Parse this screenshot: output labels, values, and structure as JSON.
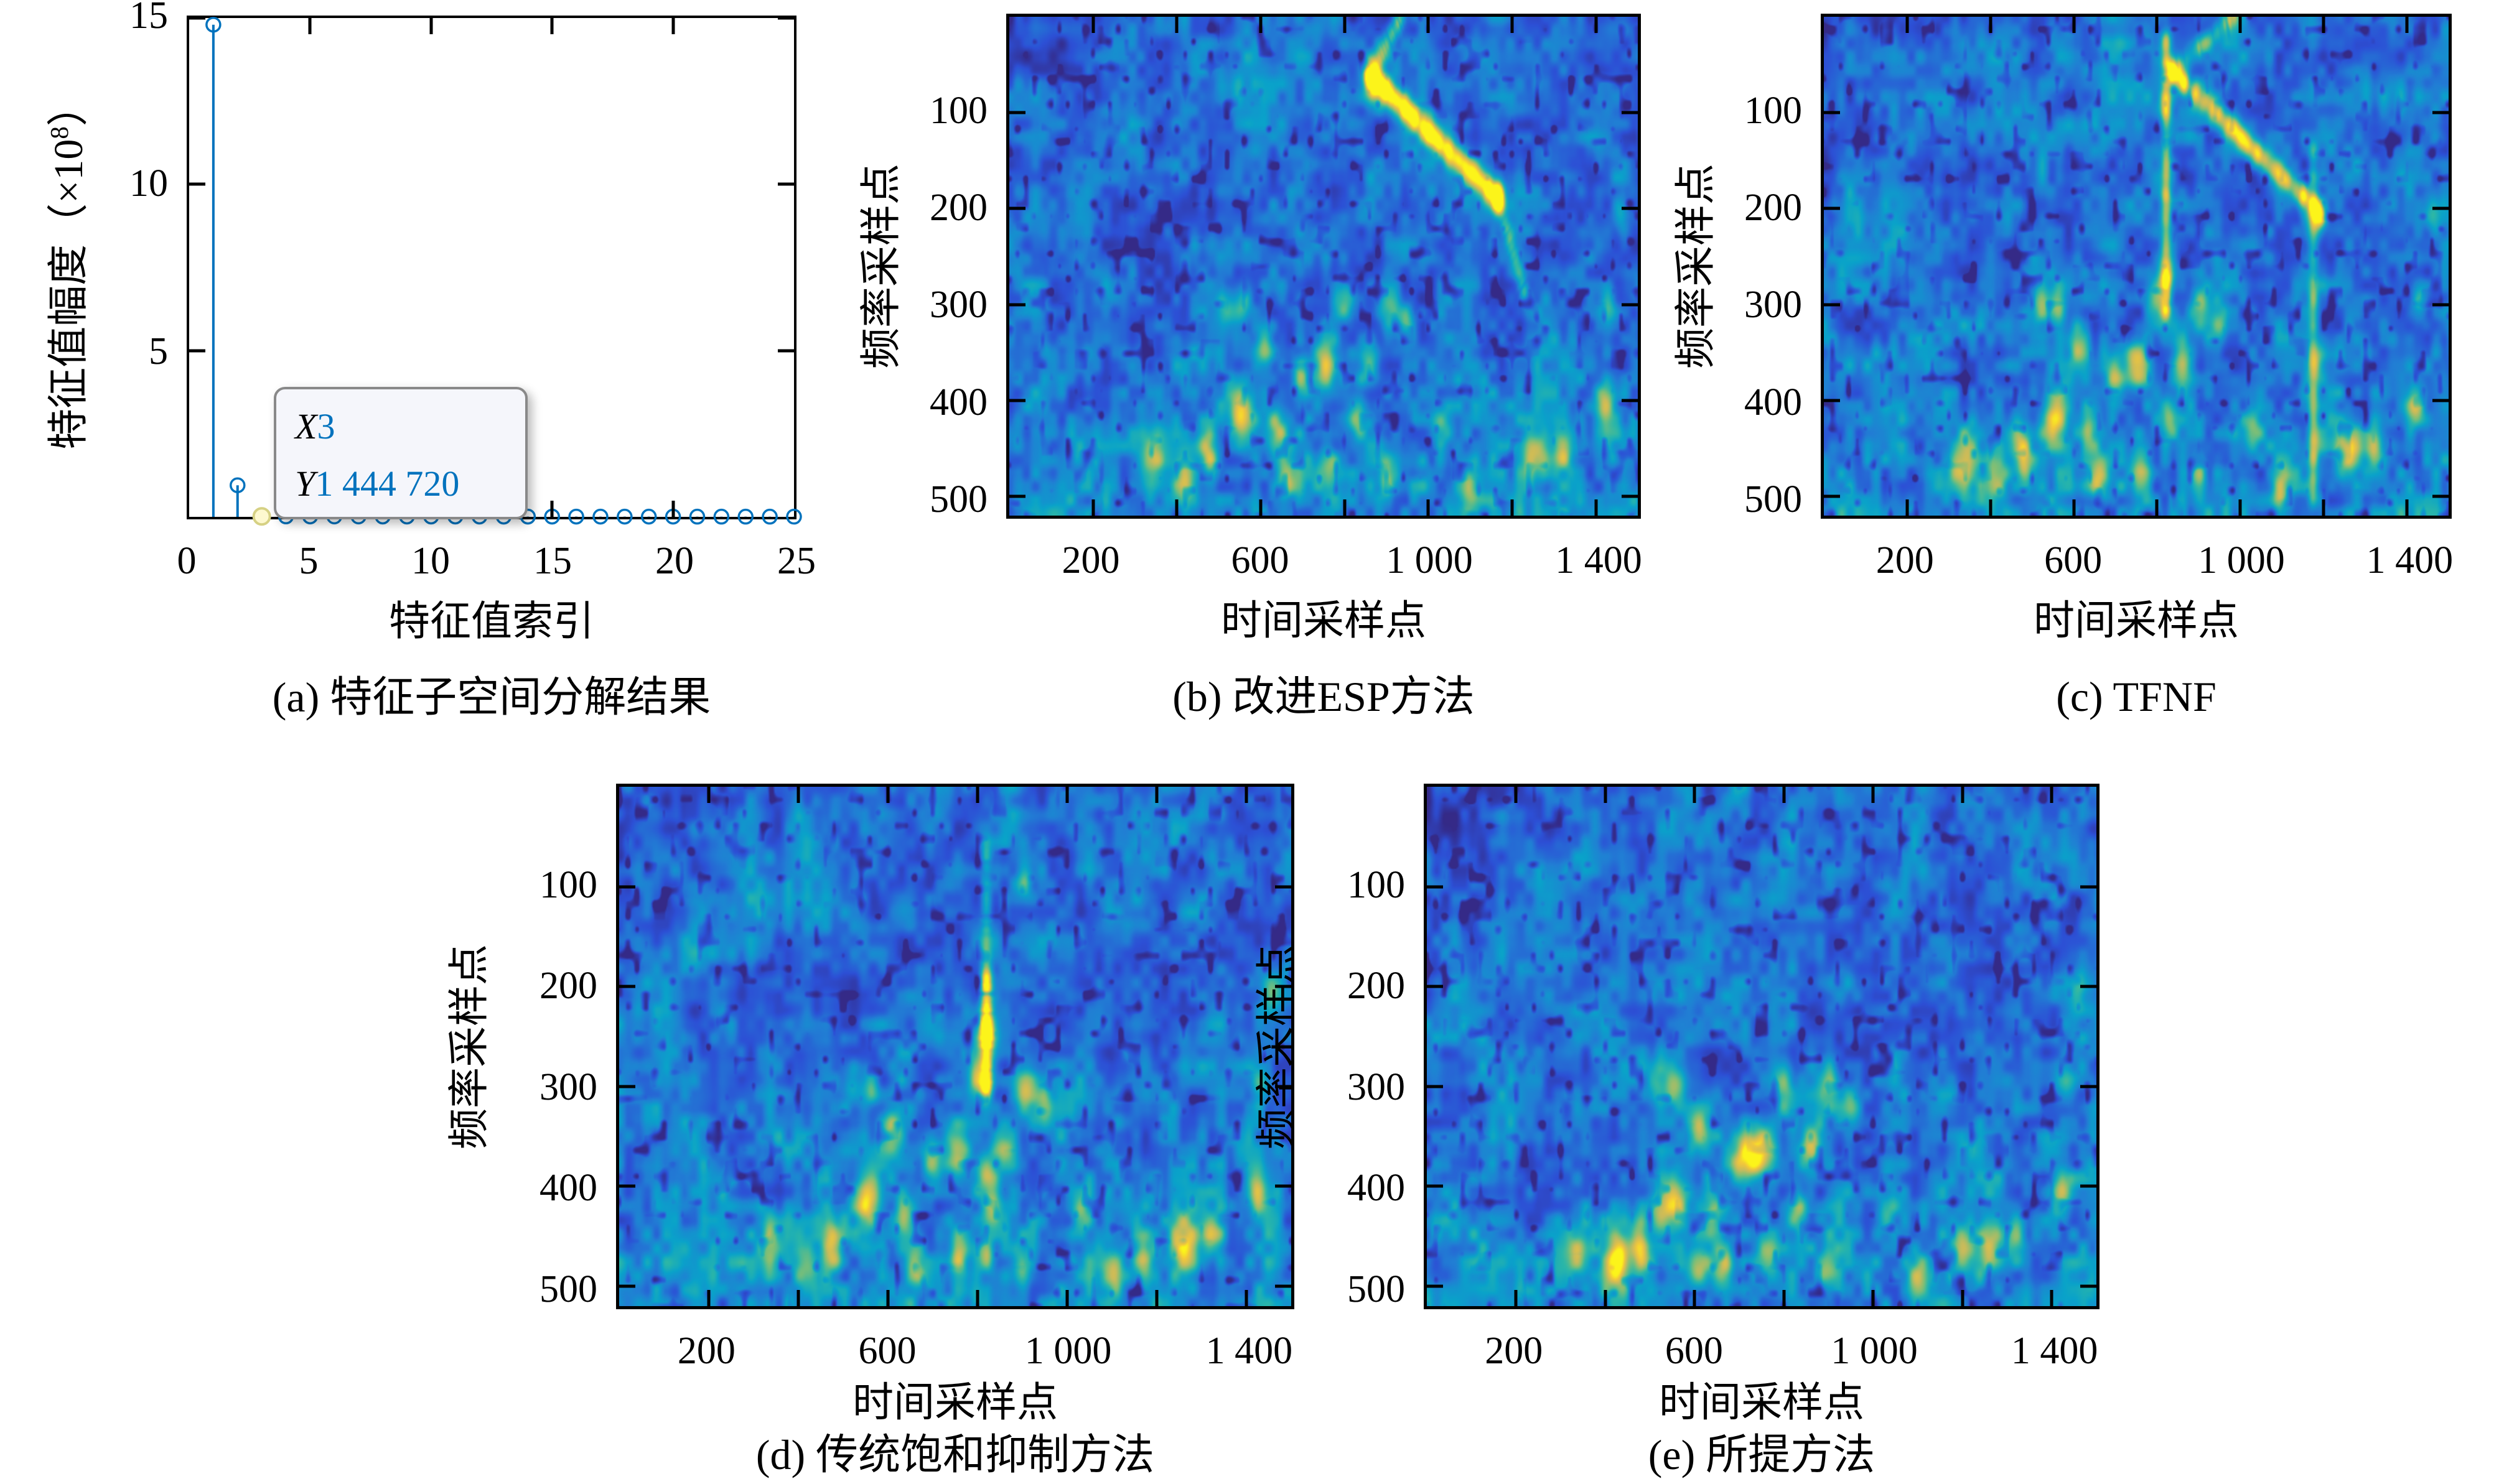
{
  "figure": {
    "background": "#ffffff",
    "description": "五子图科研图：特征子空间分解与四种时频谱抑制结果对比"
  },
  "panels": {
    "a": {
      "caption": "(a) 特征子空间分解结果",
      "xlabel": "特征值索引",
      "ylabel_pre": "特征值幅度（×10",
      "ylabel_sup": "8",
      "ylabel_post": "）",
      "datatip": {
        "x_label": "X",
        "x_value": "3",
        "y_label": "Y",
        "y_value": "1 444 720"
      }
    },
    "b": {
      "caption": "(b) 改进ESP方法",
      "xlabel": "时间采样点",
      "ylabel": "频率采样点"
    },
    "c": {
      "caption": "(c) TFNF",
      "xlabel": "时间采样点",
      "ylabel": "频率采样点"
    },
    "d": {
      "caption": "(d) 传统饱和抑制方法",
      "xlabel": "时间采样点",
      "ylabel": "频率采样点"
    },
    "e": {
      "caption": "(e) 所提方法",
      "xlabel": "时间采样点",
      "ylabel": "频率采样点"
    }
  },
  "style": {
    "accent_blue": "#0072bd",
    "axis_color": "#000000",
    "datatip_bg": "#f5f6fb",
    "datatip_border": "#898989",
    "highlight_fill": "#fdf8cf",
    "highlight_stroke": "#d6d184",
    "colormap": [
      [
        0,
        "#352a87"
      ],
      [
        0.125,
        "#2d50d6"
      ],
      [
        0.25,
        "#2180d4"
      ],
      [
        0.375,
        "#0aa3ca"
      ],
      [
        0.5,
        "#2cb7a8"
      ],
      [
        0.625,
        "#7fbf77"
      ],
      [
        0.75,
        "#c9bb5c"
      ],
      [
        0.875,
        "#f2c73c"
      ],
      [
        1,
        "#fcf41a"
      ]
    ]
  },
  "heatmap_common": {
    "target_blobs": [
      [
        340,
        465,
        22,
        0.45
      ],
      [
        420,
        480,
        18,
        0.4
      ],
      [
        470,
        445,
        16,
        0.35
      ],
      [
        480,
        465,
        14,
        0.4
      ],
      [
        520,
        300,
        16,
        0.3
      ],
      [
        555,
        415,
        20,
        0.65
      ],
      [
        560,
        300,
        14,
        0.36
      ],
      [
        610,
        345,
        16,
        0.42
      ],
      [
        640,
        430,
        16,
        0.42
      ],
      [
        660,
        480,
        16,
        0.45
      ],
      [
        700,
        375,
        16,
        0.46
      ],
      [
        755,
        362,
        18,
        0.58
      ],
      [
        760,
        470,
        16,
        0.42
      ],
      [
        800,
        295,
        16,
        0.44
      ],
      [
        830,
        420,
        14,
        0.4
      ],
      [
        860,
        360,
        16,
        0.46
      ],
      [
        900,
        480,
        14,
        0.36
      ],
      [
        905,
        300,
        16,
        0.42
      ],
      [
        950,
        320,
        14,
        0.35
      ],
      [
        1030,
        430,
        14,
        0.32
      ],
      [
        1100,
        490,
        16,
        0.42
      ],
      [
        1260,
        455,
        20,
        0.58
      ],
      [
        1320,
        450,
        16,
        0.46
      ],
      [
        1420,
        405,
        16,
        0.52
      ],
      [
        1430,
        300,
        14,
        0.3
      ],
      [
        1460,
        205,
        14,
        0.28
      ]
    ],
    "arc_blobs": [
      [
        60,
        215,
        30,
        0.1
      ],
      [
        170,
        160,
        30,
        0.11
      ],
      [
        290,
        110,
        30,
        0.12
      ],
      [
        420,
        70,
        30,
        0.12
      ],
      [
        560,
        42,
        28,
        0.11
      ],
      [
        700,
        25,
        26,
        0.1
      ]
    ]
  },
  "chart_data": [
    {
      "id": "a",
      "type": "stem",
      "title": "(a) 特征子空间分解结果",
      "xlabel": "特征值索引",
      "ylabel": "特征值幅度（×10^8）",
      "xlim": [
        0,
        25
      ],
      "ylim": [
        0,
        15
      ],
      "x": [
        1,
        2,
        3,
        4,
        5,
        6,
        7,
        8,
        9,
        10,
        11,
        12,
        13,
        14,
        15,
        16,
        17,
        18,
        19,
        20,
        21,
        22,
        23,
        24,
        25
      ],
      "y_x1e8": [
        14.8,
        0.95,
        0.0144,
        0.013,
        0.012,
        0.011,
        0.011,
        0.01,
        0.01,
        0.009,
        0.009,
        0.009,
        0.008,
        0.008,
        0.008,
        0.008,
        0.007,
        0.007,
        0.007,
        0.007,
        0.006,
        0.006,
        0.006,
        0.006,
        0.006
      ],
      "datatip": {
        "x": 3,
        "y": 1444720
      },
      "highlight_x": 3,
      "x_tick_marks": [
        5,
        10,
        15,
        20
      ],
      "x_tick_labels": [
        {
          "v": 0,
          "t": "0"
        },
        {
          "v": 5,
          "t": "5"
        },
        {
          "v": 10,
          "t": "10"
        },
        {
          "v": 15,
          "t": "15"
        },
        {
          "v": 20,
          "t": "20"
        },
        {
          "v": 25,
          "t": "25"
        }
      ],
      "y_tick_marks": [
        5,
        10,
        15
      ],
      "y_tick_labels": [
        {
          "v": 5,
          "t": "5"
        },
        {
          "v": 10,
          "t": "10"
        },
        {
          "v": 15,
          "t": "15"
        }
      ]
    },
    {
      "id": "b",
      "type": "heatmap",
      "title": "(b) 改进ESP方法",
      "xlabel": "时间采样点",
      "ylabel": "频率采样点",
      "xlim": [
        0,
        1500
      ],
      "ylim": [
        0,
        520
      ],
      "y_reversed": true,
      "seed": 101,
      "x_tick_marks": [
        200,
        400,
        600,
        800,
        1000,
        1200,
        1400
      ],
      "x_tick_labels": [
        {
          "v": 200,
          "t": "200"
        },
        {
          "v": 600,
          "t": "600"
        },
        {
          "v": 1000,
          "t": "1 000"
        },
        {
          "v": 1400,
          "t": "1 400"
        }
      ],
      "y_tick_marks": [
        100,
        200,
        300,
        400,
        500
      ],
      "y_tick_labels": [
        {
          "v": 100,
          "t": "100"
        },
        {
          "v": 200,
          "t": "200"
        },
        {
          "v": 300,
          "t": "300"
        },
        {
          "v": 400,
          "t": "400"
        },
        {
          "v": 500,
          "t": "500"
        }
      ],
      "use_targets": true,
      "use_arc": true,
      "features": {
        "segments": [
          [
            935,
            0,
            862,
            62,
            8,
            0.36
          ],
          [
            862,
            62,
            1165,
            188,
            10,
            0.85
          ],
          [
            1165,
            188,
            1228,
            285,
            8,
            0.28
          ]
        ],
        "blobs": [
          [
            870,
            66,
            14,
            0.5
          ],
          [
            1160,
            186,
            13,
            0.4
          ]
        ]
      }
    },
    {
      "id": "c",
      "type": "heatmap",
      "title": "(c) TFNF",
      "xlabel": "时间采样点",
      "ylabel": "频率采样点",
      "xlim": [
        0,
        1500
      ],
      "ylim": [
        0,
        520
      ],
      "y_reversed": true,
      "seed": 202,
      "x_tick_marks": [
        200,
        400,
        600,
        800,
        1000,
        1200,
        1400
      ],
      "x_tick_labels": [
        {
          "v": 200,
          "t": "200"
        },
        {
          "v": 600,
          "t": "600"
        },
        {
          "v": 1000,
          "t": "1 000"
        },
        {
          "v": 1400,
          "t": "1 400"
        }
      ],
      "y_tick_marks": [
        100,
        200,
        300,
        400,
        500
      ],
      "y_tick_labels": [
        {
          "v": 100,
          "t": "100"
        },
        {
          "v": 200,
          "t": "200"
        },
        {
          "v": 300,
          "t": "300"
        },
        {
          "v": 400,
          "t": "400"
        },
        {
          "v": 500,
          "t": "500"
        }
      ],
      "use_targets": true,
      "use_arc": true,
      "features": {
        "segments": [
          [
            985,
            0,
            838,
            58,
            8,
            0.33
          ],
          [
            838,
            58,
            1192,
            205,
            9,
            0.72
          ],
          [
            822,
            25,
            822,
            305,
            8,
            0.45
          ],
          [
            1175,
            140,
            1175,
            500,
            8,
            0.26
          ]
        ],
        "blobs": [
          [
            822,
            270,
            14,
            0.5
          ],
          [
            822,
            95,
            12,
            0.3
          ],
          [
            1178,
            215,
            12,
            0.42
          ],
          [
            1178,
            360,
            13,
            0.5
          ],
          [
            1178,
            440,
            12,
            0.32
          ]
        ]
      }
    },
    {
      "id": "d",
      "type": "heatmap",
      "title": "(d) 传统饱和抑制方法",
      "xlabel": "时间采样点",
      "ylabel": "频率采样点",
      "xlim": [
        0,
        1500
      ],
      "ylim": [
        0,
        520
      ],
      "y_reversed": true,
      "seed": 303,
      "x_tick_marks": [
        200,
        400,
        600,
        800,
        1000,
        1200,
        1400
      ],
      "x_tick_labels": [
        {
          "v": 200,
          "t": "200"
        },
        {
          "v": 600,
          "t": "600"
        },
        {
          "v": 1000,
          "t": "1 000"
        },
        {
          "v": 1400,
          "t": "1 400"
        }
      ],
      "y_tick_marks": [
        100,
        200,
        300,
        400,
        500
      ],
      "y_tick_labels": [
        {
          "v": 100,
          "t": "100"
        },
        {
          "v": 200,
          "t": "200"
        },
        {
          "v": 300,
          "t": "300"
        },
        {
          "v": 400,
          "t": "400"
        },
        {
          "v": 500,
          "t": "500"
        }
      ],
      "use_targets": true,
      "use_arc": true,
      "features": {
        "segments": [
          [
            820,
            195,
            820,
            300,
            9,
            0.75
          ],
          [
            820,
            60,
            820,
            195,
            8,
            0.22
          ]
        ],
        "blobs": [
          [
            820,
            250,
            12,
            0.55
          ],
          [
            820,
            385,
            13,
            0.5
          ],
          [
            820,
            470,
            13,
            0.5
          ],
          [
            1170,
            470,
            14,
            0.5
          ],
          [
            905,
            95,
            12,
            0.3
          ]
        ]
      }
    },
    {
      "id": "e",
      "type": "heatmap",
      "title": "(e) 所提方法",
      "xlabel": "时间采样点",
      "ylabel": "频率采样点",
      "xlim": [
        0,
        1500
      ],
      "ylim": [
        0,
        520
      ],
      "y_reversed": true,
      "seed": 404,
      "x_tick_marks": [
        200,
        400,
        600,
        800,
        1000,
        1200,
        1400
      ],
      "x_tick_labels": [
        {
          "v": 200,
          "t": "200"
        },
        {
          "v": 600,
          "t": "600"
        },
        {
          "v": 1000,
          "t": "1 000"
        },
        {
          "v": 1400,
          "t": "1 400"
        }
      ],
      "y_tick_marks": [
        100,
        200,
        300,
        400,
        500
      ],
      "y_tick_labels": [
        {
          "v": 100,
          "t": "100"
        },
        {
          "v": 200,
          "t": "200"
        },
        {
          "v": 300,
          "t": "300"
        },
        {
          "v": 400,
          "t": "400"
        },
        {
          "v": 500,
          "t": "500"
        }
      ],
      "use_targets": true,
      "use_arc": true,
      "features": {
        "segments": [],
        "blobs": [
          [
            730,
            370,
            16,
            0.68
          ],
          [
            520,
            430,
            16,
            0.5
          ],
          [
            430,
            470,
            15,
            0.55
          ],
          [
            610,
            480,
            15,
            0.5
          ],
          [
            1200,
            460,
            16,
            0.45
          ]
        ]
      }
    }
  ]
}
